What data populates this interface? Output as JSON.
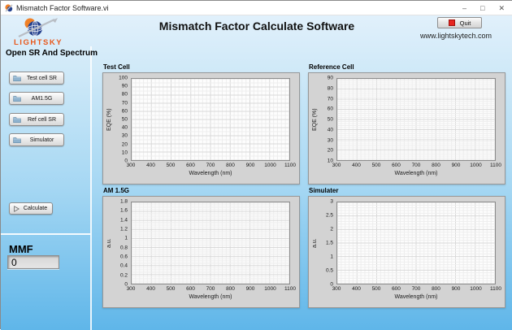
{
  "window": {
    "title": "Mismatch Factor Software.vi",
    "minimize": "–",
    "maximize": "□",
    "close": "✕"
  },
  "header": {
    "logo_text": "LIGHTSKY",
    "title": "Mismatch Factor Calculate Software",
    "quit_label": "Quit",
    "website": "www.lightskytech.com"
  },
  "sidebar": {
    "heading": "Open SR And Spectrum",
    "buttons": [
      {
        "label": "Test cell SR",
        "icon": "folder-open-icon"
      },
      {
        "label": "AM1.5G",
        "icon": "folder-open-icon"
      },
      {
        "label": "Ref cell SR",
        "icon": "folder-open-icon"
      },
      {
        "label": "Simulator",
        "icon": "folder-open-icon"
      }
    ],
    "calculate_label": "Calculate",
    "calculate_icon": "run-arrow-icon",
    "mmf_label": "MMF",
    "mmf_value": "0"
  },
  "colors": {
    "background_top": "#e1f0fb",
    "background_bottom": "#5fb6e9",
    "panel_gray": "#d3d3d3",
    "quit_red": "#e62520",
    "logo_orange": "#e8581c",
    "globe_blue": "#24418e"
  },
  "chart_data": [
    {
      "type": "line",
      "title": "Test Cell",
      "xlabel": "Wavelength (nm)",
      "ylabel": "EQE (%)",
      "xlim": [
        300,
        1100
      ],
      "ylim": [
        0,
        100
      ],
      "xticks": [
        "300",
        "400",
        "500",
        "600",
        "700",
        "800",
        "900",
        "1000",
        "1100"
      ],
      "yticks": [
        "0",
        "10",
        "20",
        "30",
        "40",
        "50",
        "60",
        "70",
        "80",
        "90",
        "100"
      ],
      "grid": true,
      "legend": "none",
      "series": []
    },
    {
      "type": "line",
      "title": "Reference Cell",
      "xlabel": "Wavelength (nm)",
      "ylabel": "EQE (%)",
      "xlim": [
        300,
        1100
      ],
      "ylim": [
        10,
        90
      ],
      "xticks": [
        "300",
        "400",
        "500",
        "600",
        "700",
        "800",
        "900",
        "1000",
        "1100"
      ],
      "yticks": [
        "10",
        "20",
        "30",
        "40",
        "50",
        "60",
        "70",
        "80",
        "90"
      ],
      "grid": true,
      "legend": "none",
      "series": []
    },
    {
      "type": "line",
      "title": "AM 1.5G",
      "xlabel": "Wavelength (nm)",
      "ylabel": "a.u.",
      "xlim": [
        300,
        1100
      ],
      "ylim": [
        0,
        1.8
      ],
      "xticks": [
        "300",
        "400",
        "500",
        "600",
        "700",
        "800",
        "900",
        "1000",
        "1100"
      ],
      "yticks": [
        "0",
        "0.2",
        "0.4",
        "0.6",
        "0.8",
        "1",
        "1.2",
        "1.4",
        "1.6",
        "1.8"
      ],
      "grid": true,
      "legend": "none",
      "series": []
    },
    {
      "type": "line",
      "title": "Simulater",
      "xlabel": "Wavelength (nm)",
      "ylabel": "a.u.",
      "xlim": [
        300,
        1100
      ],
      "ylim": [
        0,
        3
      ],
      "xticks": [
        "300",
        "400",
        "500",
        "600",
        "700",
        "800",
        "900",
        "1000",
        "1100"
      ],
      "yticks": [
        "0",
        "0.5",
        "1",
        "1.5",
        "2",
        "2.5",
        "3"
      ],
      "grid": true,
      "legend": "none",
      "series": []
    }
  ]
}
